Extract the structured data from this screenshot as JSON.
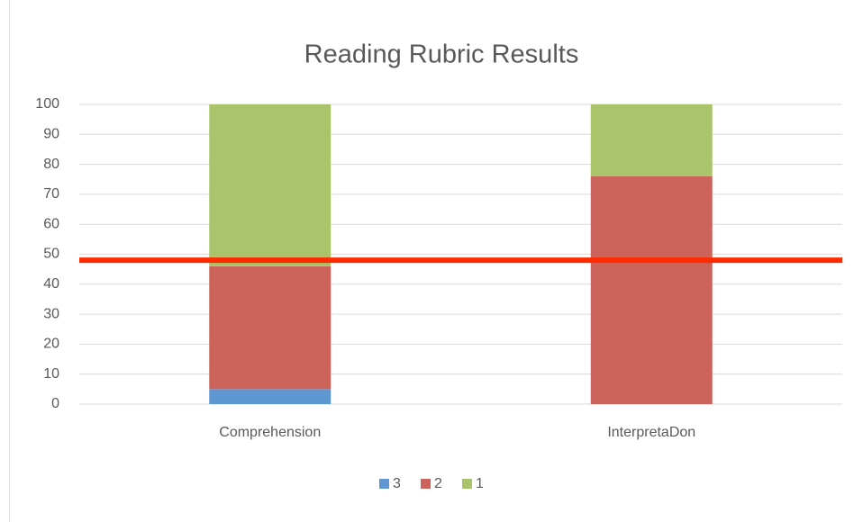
{
  "chart_data": {
    "type": "stacked_bar",
    "title": "Reading Rubric Results",
    "categories": [
      "Comprehension",
      "InterpretaDon"
    ],
    "series": [
      {
        "name": "3",
        "color": "#5f97d3",
        "values": [
          5,
          0
        ]
      },
      {
        "name": "2",
        "color": "#cc645c",
        "values": [
          41,
          76
        ]
      },
      {
        "name": "1",
        "color": "#a9c46b",
        "values": [
          54,
          24
        ]
      }
    ],
    "ylim": [
      0,
      100
    ],
    "yticks": [
      0,
      10,
      20,
      30,
      40,
      50,
      60,
      70,
      80,
      90,
      100
    ],
    "grid": true,
    "reference_line": {
      "value": 48,
      "color": "#ff2a00"
    },
    "legend": "bottom"
  }
}
